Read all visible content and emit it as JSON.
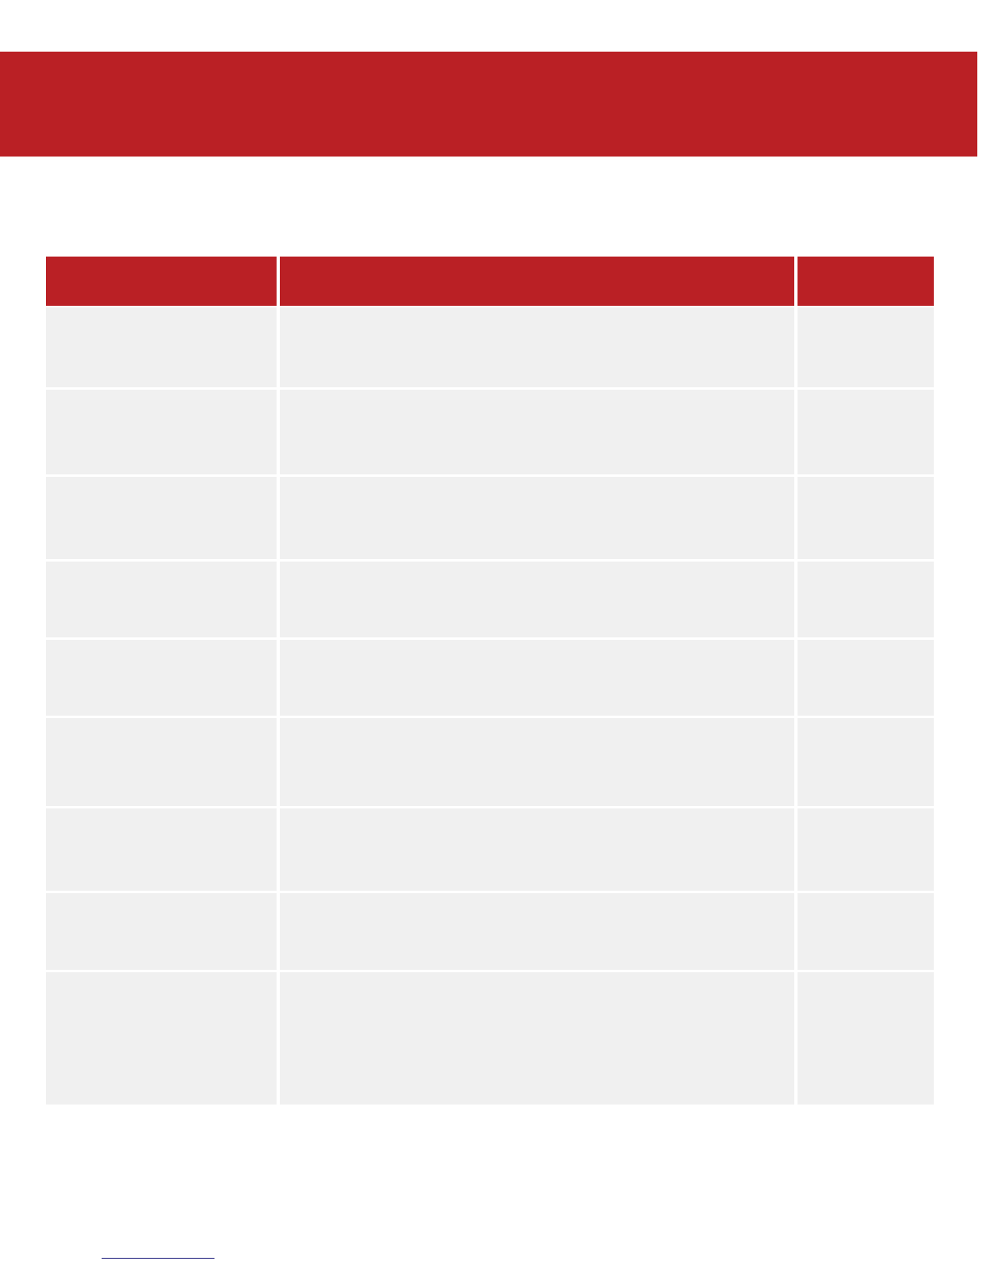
{
  "colors": {
    "accent": "#BA2025",
    "row_bg": "#F0F0F0",
    "link": "#1A1A7A"
  },
  "banner": {
    "title": ""
  },
  "table": {
    "columns": [
      "",
      "",
      ""
    ],
    "rows": [
      [
        "",
        "",
        ""
      ],
      [
        "",
        "",
        ""
      ],
      [
        "",
        "",
        ""
      ],
      [
        "",
        "",
        ""
      ],
      [
        "",
        "",
        ""
      ],
      [
        "",
        "",
        ""
      ],
      [
        "",
        "",
        ""
      ],
      [
        "",
        "",
        ""
      ],
      [
        "",
        "",
        ""
      ]
    ]
  },
  "footer": {
    "link_text": ""
  }
}
